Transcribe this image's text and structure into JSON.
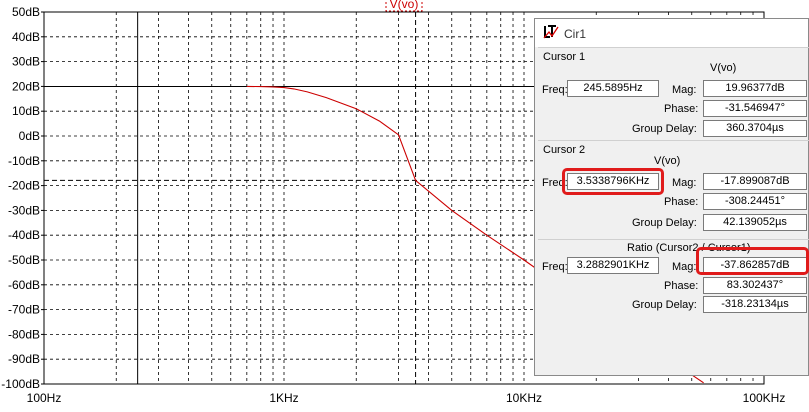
{
  "trace_title": "V(vo)",
  "chart_data": {
    "type": "line",
    "x_scale": "log",
    "xlim": [
      100,
      100000
    ],
    "ylim": [
      -100,
      50
    ],
    "grid": true,
    "y_ticks": [
      "50dB",
      "40dB",
      "30dB",
      "20dB",
      "10dB",
      "0dB",
      "-10dB",
      "-20dB",
      "-30dB",
      "-40dB",
      "-50dB",
      "-60dB",
      "-70dB",
      "-80dB",
      "-90dB",
      "-100dB"
    ],
    "y_tick_values": [
      50,
      40,
      30,
      20,
      10,
      0,
      -10,
      -20,
      -30,
      -40,
      -50,
      -60,
      -70,
      -80,
      -90,
      -100
    ],
    "x_ticks": [
      "100Hz",
      "1KHz",
      "10KHz",
      "100KHz"
    ],
    "x_tick_values": [
      100,
      1000,
      10000,
      100000
    ],
    "series": [
      {
        "color": "#cc0000",
        "x": [
          700,
          800,
          900,
          1000,
          1100,
          1250,
          1500,
          2000,
          2500,
          3000,
          3533.88,
          5000,
          7000,
          10000,
          15000,
          20000,
          30000,
          40000,
          56000
        ],
        "y": [
          20.0,
          19.9,
          19.8,
          19.5,
          19.0,
          17.8,
          15.5,
          11.0,
          6.0,
          0.5,
          -17.9,
          -30.0,
          -40.0,
          -50.0,
          -62.0,
          -70.0,
          -82.0,
          -90.0,
          -99.5
        ]
      }
    ],
    "cursors": [
      {
        "name": "Cursor 1",
        "x": 245.5895,
        "y": 19.96377,
        "style": "solid"
      },
      {
        "name": "Cursor 2",
        "x": 3533.8796,
        "y": -17.899087,
        "style": "dashed"
      }
    ]
  },
  "dialog": {
    "title": "Cir1",
    "cursor1": {
      "label": "Cursor 1",
      "trace": "V(vo)",
      "freq_label": "Freq:",
      "freq": "245.5895Hz",
      "mag_label": "Mag:",
      "mag": "19.96377dB",
      "phase_label": "Phase:",
      "phase": "-31.546947°",
      "gd_label": "Group Delay:",
      "gd": "360.3704µs"
    },
    "cursor2": {
      "label": "Cursor 2",
      "trace": "V(vo)",
      "freq_label": "Freq:",
      "freq": "3.5338796KHz",
      "mag_label": "Mag:",
      "mag": "-17.899087dB",
      "phase_label": "Phase:",
      "phase": "-308.24451°",
      "gd_label": "Group Delay:",
      "gd": "42.139052µs"
    },
    "ratio": {
      "label": "Ratio (Cursor2 / Cursor1)",
      "freq_label": "Freq:",
      "freq": "3.2882901KHz",
      "mag_label": "Mag:",
      "mag": "-37.862857dB",
      "phase_label": "Phase:",
      "phase": "83.302437°",
      "gd_label": "Group Delay:",
      "gd": "-318.23134µs"
    }
  },
  "highlight_color": "#e01b1b"
}
